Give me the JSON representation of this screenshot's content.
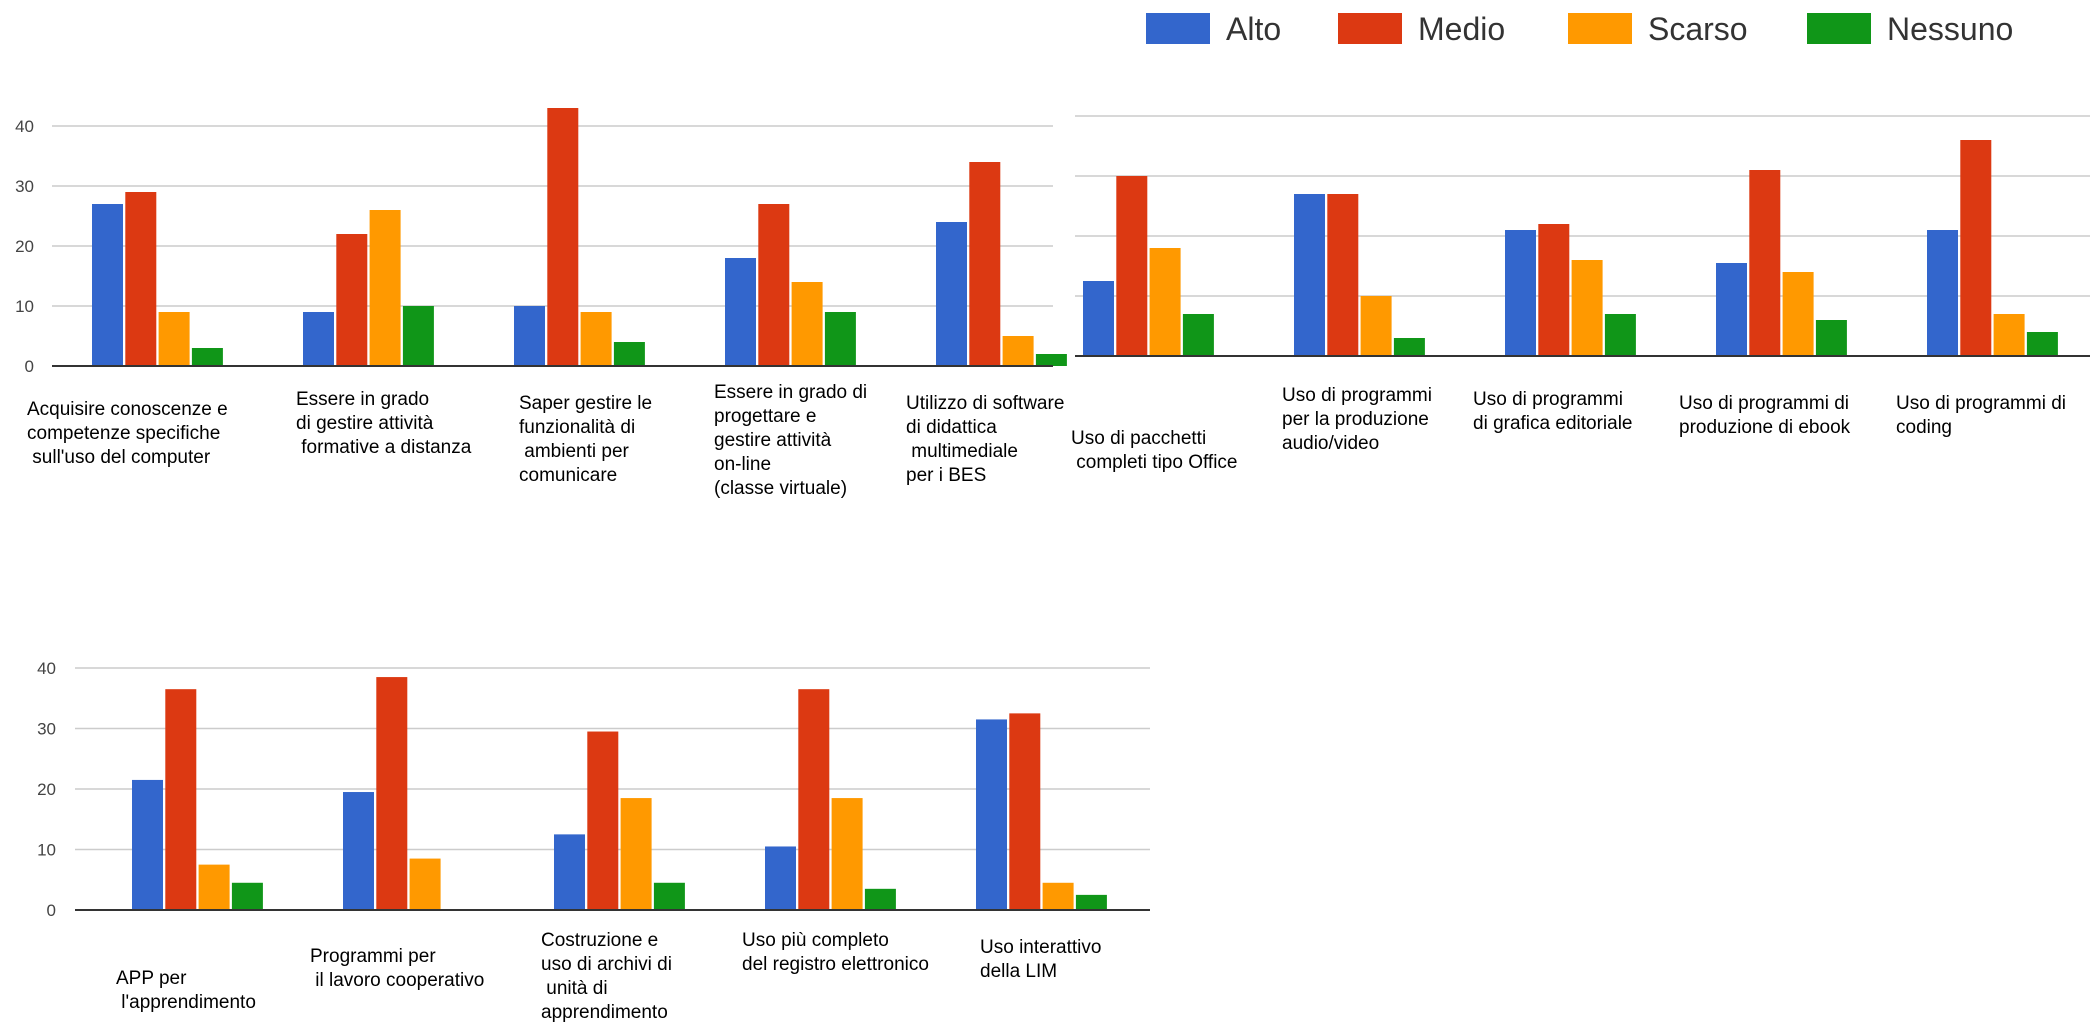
{
  "legend": [
    {
      "name": "Alto",
      "color": "#3366cc"
    },
    {
      "name": "Medio",
      "color": "#dc3912"
    },
    {
      "name": "Scarso",
      "color": "#ff9900"
    },
    {
      "name": "Nessuno",
      "color": "#109618"
    }
  ],
  "chart_data": [
    {
      "type": "bar",
      "ylim": [
        0,
        45
      ],
      "yticks": [
        "0",
        "10",
        "20",
        "30",
        "40"
      ],
      "categories": [
        "Acquisire conoscenze e\ncompetenze specifiche\n sull'uso del computer",
        "Essere in grado\ndi gestire attività\n formative a distanza",
        "Saper gestire le\nfunzionalità di\n ambienti per\ncomunicare",
        "Essere in grado di\nprogettare e\ngestire attività\non-line\n(classe virtuale)",
        "Utilizzo di software\ndi didattica\n multimediale\nper i BES"
      ],
      "series": [
        {
          "name": "Alto",
          "values": [
            27,
            9,
            10,
            18,
            24
          ]
        },
        {
          "name": "Medio",
          "values": [
            29,
            22,
            43,
            27,
            34
          ]
        },
        {
          "name": "Scarso",
          "values": [
            9,
            26,
            9,
            14,
            5
          ]
        },
        {
          "name": "Nessuno",
          "values": [
            3,
            10,
            4,
            9,
            2
          ]
        }
      ]
    },
    {
      "type": "bar",
      "ylim": [
        0,
        40
      ],
      "categories": [
        "Uso di pacchetti\n completi tipo Office",
        "Uso di programmi\nper la produzione\naudio/video",
        "Uso di programmi\ndi grafica editoriale",
        "Uso di programmi di\nproduzione di ebook",
        "Uso di programmi di\ncoding"
      ],
      "series": [
        {
          "name": "Alto",
          "values": [
            12.5,
            27,
            21,
            15.5,
            21
          ]
        },
        {
          "name": "Medio",
          "values": [
            30,
            27,
            22,
            31,
            36
          ]
        },
        {
          "name": "Scarso",
          "values": [
            18,
            10,
            16,
            14,
            7
          ]
        },
        {
          "name": "Nessuno",
          "values": [
            7,
            3,
            7,
            6,
            4
          ]
        }
      ]
    },
    {
      "type": "bar",
      "ylim": [
        0,
        45
      ],
      "yticks": [
        "0",
        "10",
        "20",
        "30",
        "40"
      ],
      "categories": [
        "APP per\n l'apprendimento",
        "Programmi per\n il lavoro cooperativo",
        "Costruzione e\nuso di archivi di\n unità di\napprendimento",
        "Uso più completo\ndel registro elettronico",
        "Uso interattivo\ndella LIM"
      ],
      "series": [
        {
          "name": "Alto",
          "values": [
            21.5,
            19.5,
            12.5,
            10.5,
            31.5
          ]
        },
        {
          "name": "Medio",
          "values": [
            36.5,
            38.5,
            29.5,
            36.5,
            32.5
          ]
        },
        {
          "name": "Scarso",
          "values": [
            7.5,
            8.5,
            18.5,
            18.5,
            4.5
          ]
        },
        {
          "name": "Nessuno",
          "values": [
            4.5,
            0,
            4.5,
            3.5,
            2.5
          ]
        }
      ]
    }
  ]
}
